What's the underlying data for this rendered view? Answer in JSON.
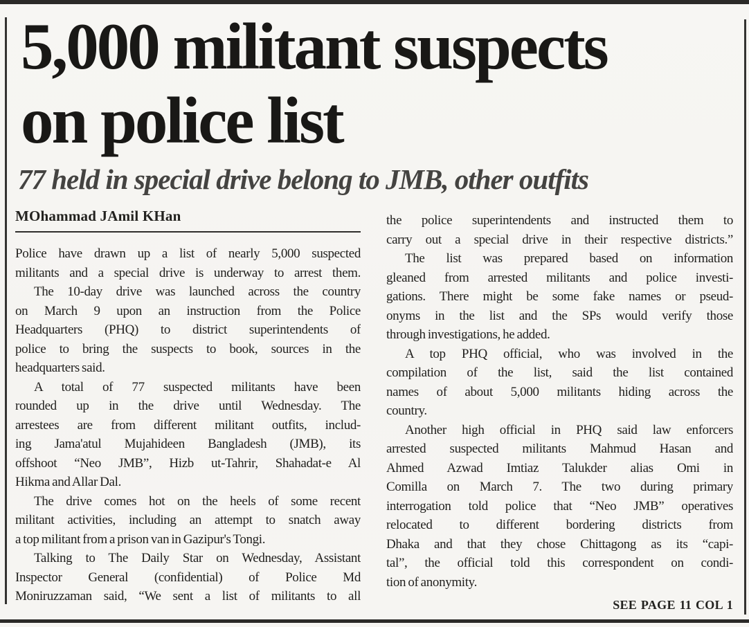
{
  "article": {
    "headline_line1": "5,000 militant suspects",
    "headline_line2": "on police list",
    "subheadline": "77 held in special drive belong to JMB, other outfits",
    "byline": "MOhammad JAmil KHan",
    "continuation": "SEE PAGE 11 COL 1",
    "columns": {
      "left": [
        {
          "t": "Police have drawn up a list of nearly 5,000 suspected"
        },
        {
          "t": "militants and a special drive is underway to arrest them."
        },
        {
          "t": "The 10-day drive was launched across the country",
          "indent": true
        },
        {
          "t": "on March 9 upon an instruction from the Police"
        },
        {
          "t": "Headquarters (PHQ) to district superintendents of"
        },
        {
          "t": "police to bring the suspects to book, sources in the"
        },
        {
          "t": "headquarters said.",
          "last": true
        },
        {
          "t": "A total of 77 suspected militants have been",
          "indent": true
        },
        {
          "t": "rounded up in the drive until Wednesday. The"
        },
        {
          "t": "arrestees are from different militant outfits, includ-"
        },
        {
          "t": "ing Jama'atul Mujahideen Bangladesh (JMB), its"
        },
        {
          "t": "offshoot “Neo JMB”, Hizb ut-Tahrir, Shahadat-e Al"
        },
        {
          "t": "Hikma and Allar Dal.",
          "last": true
        },
        {
          "t": "The drive comes hot on the heels of some recent",
          "indent": true
        },
        {
          "t": "militant activities, including an attempt to snatch away"
        },
        {
          "t": "a top militant from a prison van in Gazipur's Tongi.",
          "last": true
        },
        {
          "t": "Talking to The Daily Star on Wednesday, Assistant",
          "indent": true
        },
        {
          "t": "Inspector General (confidential) of Police Md"
        },
        {
          "t": "Moniruzzaman said, “We sent a list of militants to all"
        }
      ],
      "right": [
        {
          "t": "the police superintendents and instructed them to"
        },
        {
          "t": "carry out a special drive in their respective districts.”"
        },
        {
          "t": "The list was prepared based on information",
          "indent": true
        },
        {
          "t": "gleaned from arrested militants and police investi-"
        },
        {
          "t": "gations. There might be some fake names or pseud-"
        },
        {
          "t": "onyms in the list and the SPs would verify those"
        },
        {
          "t": "through investigations, he added.",
          "last": true
        },
        {
          "t": "A top PHQ official, who was involved in the",
          "indent": true
        },
        {
          "t": "compilation of the list, said the list contained"
        },
        {
          "t": "names of about 5,000 militants hiding across the"
        },
        {
          "t": "country.",
          "last": true
        },
        {
          "t": "Another high official in PHQ said law enforcers",
          "indent": true
        },
        {
          "t": "arrested suspected militants Mahmud Hasan and"
        },
        {
          "t": "Ahmed Azwad Imtiaz Talukder alias Omi in"
        },
        {
          "t": "Comilla on March 7. The two during primary"
        },
        {
          "t": "interrogation told police that “Neo JMB” operatives"
        },
        {
          "t": "relocated to different bordering districts from"
        },
        {
          "t": "Dhaka and that they chose Chittagong as its “capi-"
        },
        {
          "t": "tal”, the official told this correspondent on condi-"
        },
        {
          "t": "tion of anonymity.",
          "last": true
        }
      ]
    }
  },
  "colors": {
    "paper": "#f6f5f2",
    "ink": "#1e1d1b",
    "subhead_ink": "#444341",
    "rule": "#2b2a28"
  }
}
